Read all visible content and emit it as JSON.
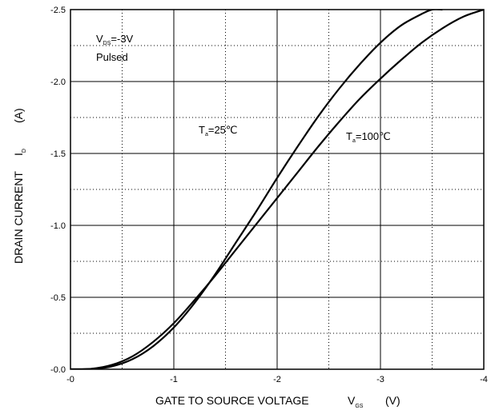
{
  "chart_data": {
    "type": "line",
    "xlabel": "GATE TO SOURCE VOLTAGE",
    "xlabel_symbol": "V",
    "xlabel_symbol_sub": "GS",
    "xlabel_unit": "(V)",
    "ylabel": "DRAIN CURRENT",
    "ylabel_symbol": "I",
    "ylabel_symbol_sub": "D",
    "ylabel_unit": "(A)",
    "xlim": [
      0,
      -4
    ],
    "ylim": [
      0,
      -2.5
    ],
    "x_ticks": [
      "-0",
      "-1",
      "-2",
      "-3",
      "-4"
    ],
    "y_ticks": [
      "-0.0",
      "-0.5",
      "-1.0",
      "-1.5",
      "-2.0",
      "-2.5"
    ],
    "grid": {
      "major": "solid",
      "minor": "dotted"
    },
    "conditions": {
      "vds_symbol": "V",
      "vds_sub": "DS",
      "vds_value": "=-3V",
      "mode": "Pulsed"
    },
    "series": [
      {
        "name_symbol": "T",
        "name_sub": "a",
        "name_value": "=25℃",
        "x": [
          0,
          -0.2,
          -0.4,
          -0.6,
          -0.8,
          -1.0,
          -1.2,
          -1.4,
          -1.6,
          -1.8,
          -2.0,
          -2.2,
          -2.4,
          -2.6,
          -2.8,
          -3.0,
          -3.2,
          -3.4,
          -3.5,
          -3.6
        ],
        "y": [
          0,
          -0.002,
          -0.02,
          -0.07,
          -0.16,
          -0.29,
          -0.46,
          -0.66,
          -0.88,
          -1.1,
          -1.33,
          -1.55,
          -1.76,
          -1.95,
          -2.12,
          -2.27,
          -2.39,
          -2.47,
          -2.5,
          -2.5
        ]
      },
      {
        "name_symbol": "T",
        "name_sub": "a",
        "name_value": "=100℃",
        "x": [
          0,
          -0.2,
          -0.4,
          -0.6,
          -0.8,
          -1.0,
          -1.2,
          -1.4,
          -1.6,
          -1.8,
          -2.0,
          -2.2,
          -2.4,
          -2.6,
          -2.8,
          -3.0,
          -3.2,
          -3.4,
          -3.6,
          -3.8,
          -4.0
        ],
        "y": [
          0,
          -0.003,
          -0.03,
          -0.09,
          -0.19,
          -0.32,
          -0.48,
          -0.65,
          -0.83,
          -1.01,
          -1.19,
          -1.37,
          -1.55,
          -1.72,
          -1.88,
          -2.02,
          -2.15,
          -2.27,
          -2.37,
          -2.45,
          -2.5
        ]
      }
    ]
  }
}
